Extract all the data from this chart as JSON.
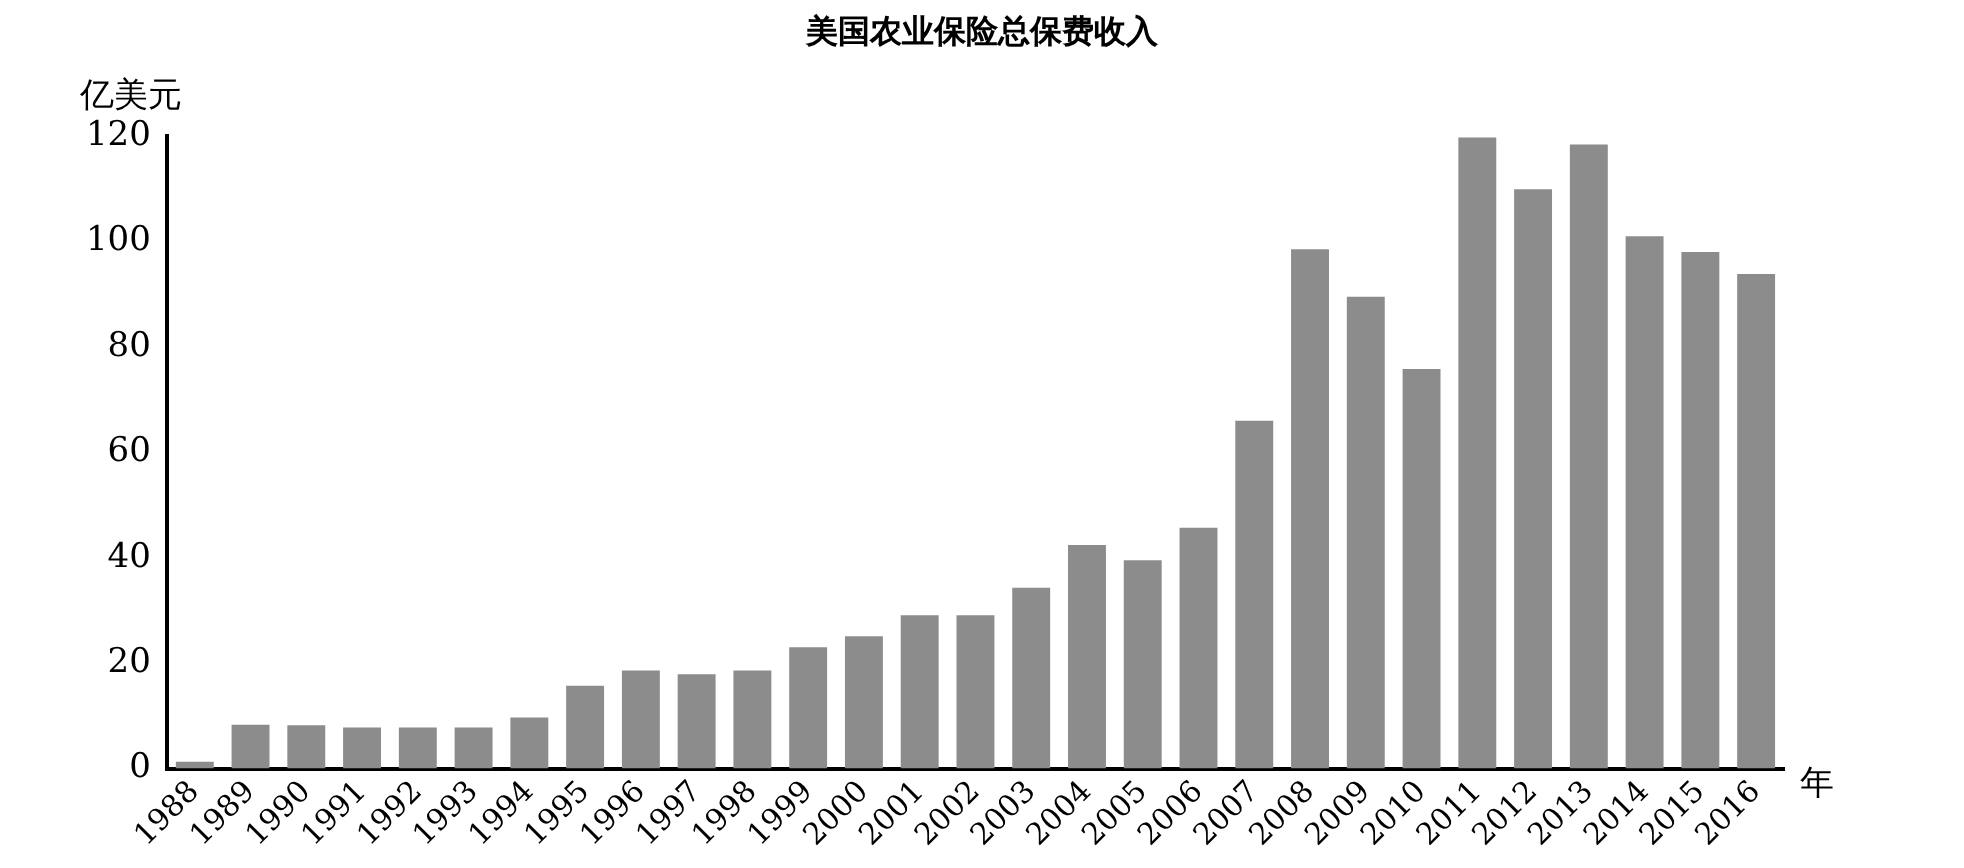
{
  "chart_data": {
    "type": "bar",
    "title": "美国农业保险总保费收入",
    "ylabel": "亿美元",
    "xlabel": "年",
    "categories": [
      "1988",
      "1989",
      "1990",
      "1991",
      "1992",
      "1993",
      "1994",
      "1995",
      "1996",
      "1997",
      "1998",
      "1999",
      "2000",
      "2001",
      "2002",
      "2003",
      "2004",
      "2005",
      "2006",
      "2007",
      "2008",
      "2009",
      "2010",
      "2011",
      "2012",
      "2013",
      "2014",
      "2015",
      "2016"
    ],
    "values": [
      1.3,
      8.3,
      8.2,
      7.8,
      7.8,
      7.8,
      9.7,
      15.7,
      18.6,
      17.9,
      18.6,
      23,
      25.1,
      29.1,
      29.1,
      34.3,
      42.4,
      39.5,
      45.7,
      66,
      98.5,
      89.5,
      75.8,
      119.7,
      109.9,
      118.4,
      101,
      98,
      93.8
    ],
    "color": "#8c8c8c",
    "ylim": [
      0,
      120
    ],
    "yticks": [
      0,
      20,
      40,
      60,
      80,
      100,
      120
    ],
    "grid": false,
    "legend": false
  }
}
